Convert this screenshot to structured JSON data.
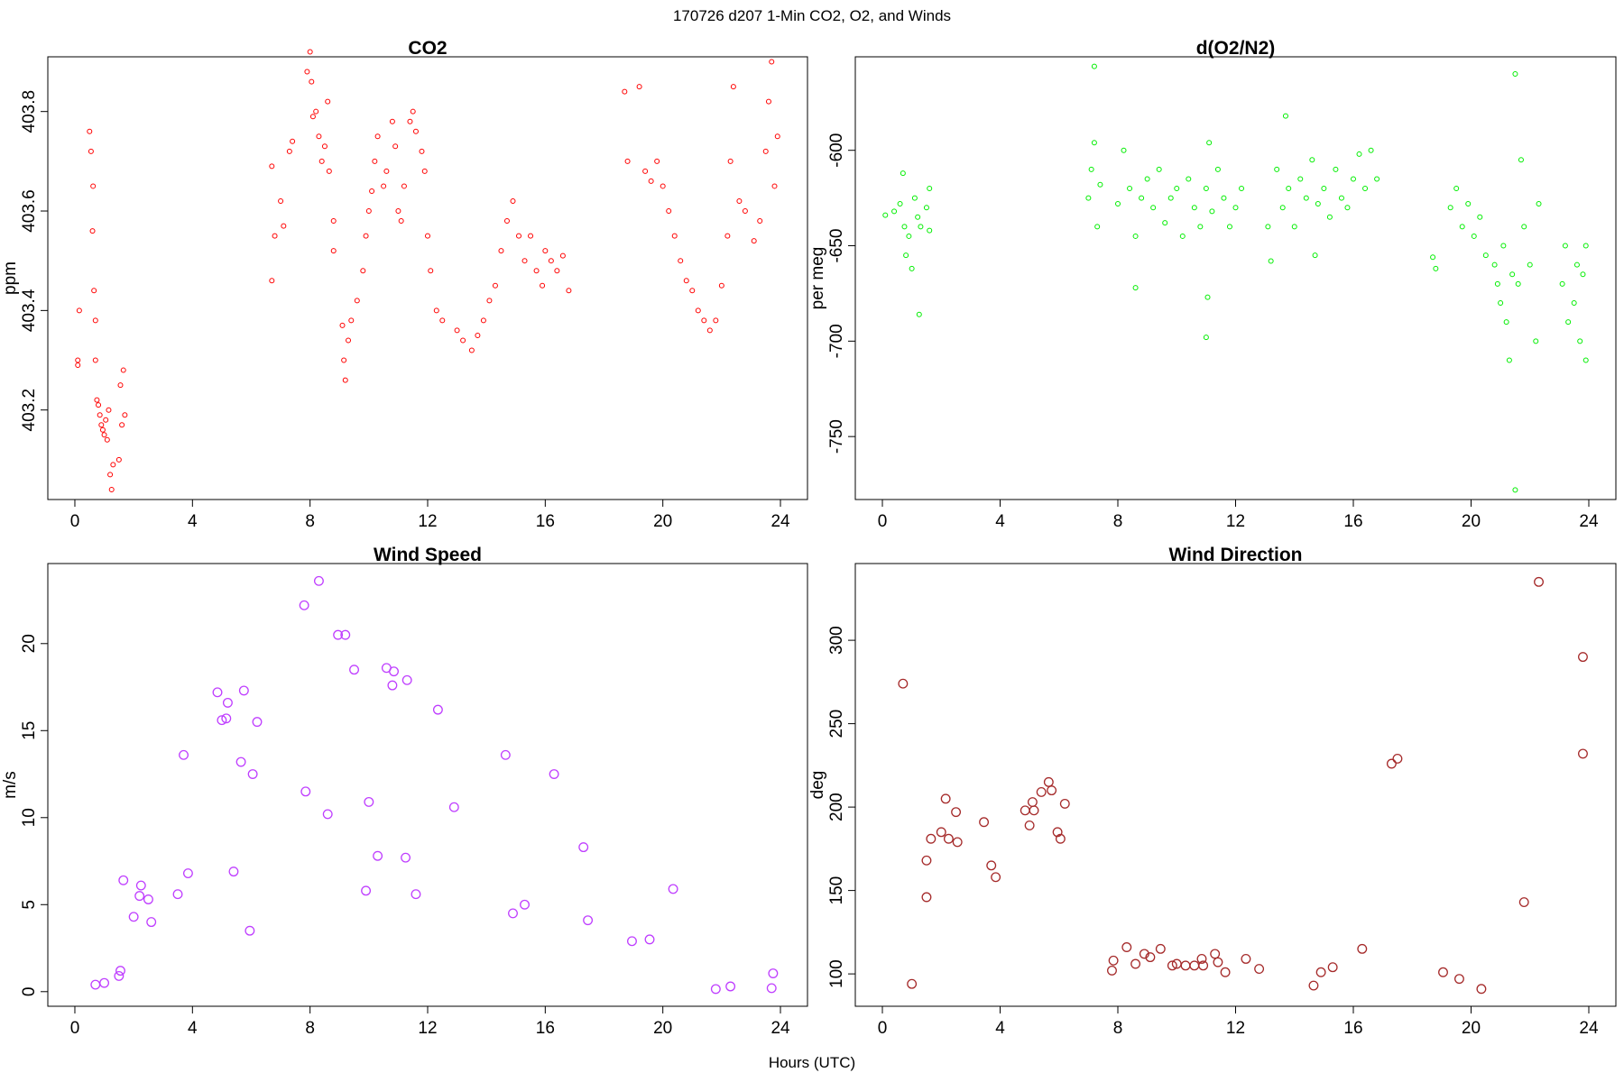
{
  "title": "170726   d207   1-Min CO2, O2, and Winds",
  "x_label": "Hours (UTC)",
  "chart_data": [
    {
      "type": "scatter",
      "title": "CO2",
      "y_label": "ppm",
      "color": "#ff0000",
      "xlim": [
        -0.92,
        24.92
      ],
      "xticks": [
        0,
        4,
        8,
        12,
        16,
        20,
        24
      ],
      "ylim": [
        403.02,
        403.91
      ],
      "yticks": [
        403.2,
        403.4,
        403.6,
        403.8
      ],
      "x": [
        0.1,
        0.1,
        0.15,
        0.5,
        0.55,
        0.6,
        0.62,
        0.65,
        0.7,
        0.7,
        0.75,
        0.8,
        0.85,
        0.9,
        0.95,
        1.0,
        1.05,
        1.1,
        1.15,
        1.2,
        1.25,
        1.3,
        1.5,
        1.55,
        1.6,
        1.65,
        1.7,
        6.7,
        6.7,
        6.8,
        7.0,
        7.1,
        7.3,
        7.4,
        7.9,
        8.0,
        8.05,
        8.1,
        8.2,
        8.3,
        8.4,
        8.5,
        8.6,
        8.65,
        8.8,
        8.8,
        9.1,
        9.15,
        9.2,
        9.3,
        9.4,
        9.6,
        9.8,
        9.9,
        10.0,
        10.1,
        10.2,
        10.3,
        10.5,
        10.6,
        10.8,
        10.9,
        11.0,
        11.1,
        11.2,
        11.4,
        11.5,
        11.6,
        11.8,
        11.9,
        12.0,
        12.1,
        12.3,
        12.5,
        13.0,
        13.2,
        13.5,
        13.7,
        13.9,
        14.1,
        14.3,
        14.5,
        14.7,
        14.9,
        15.1,
        15.3,
        15.5,
        15.7,
        15.9,
        16.0,
        16.2,
        16.4,
        16.6,
        16.8,
        18.7,
        18.8,
        19.2,
        19.4,
        19.6,
        19.8,
        20.0,
        20.2,
        20.4,
        20.6,
        20.8,
        21.0,
        21.2,
        21.4,
        21.6,
        21.8,
        22.0,
        22.2,
        22.3,
        22.4,
        22.6,
        22.8,
        23.1,
        23.3,
        23.5,
        23.6,
        23.7,
        23.8,
        23.9
      ],
      "values": [
        403.3,
        403.29,
        403.4,
        403.76,
        403.72,
        403.56,
        403.65,
        403.44,
        403.3,
        403.38,
        403.22,
        403.21,
        403.19,
        403.17,
        403.16,
        403.15,
        403.18,
        403.14,
        403.2,
        403.07,
        403.04,
        403.09,
        403.1,
        403.25,
        403.17,
        403.28,
        403.19,
        403.69,
        403.46,
        403.55,
        403.62,
        403.57,
        403.72,
        403.74,
        403.88,
        403.92,
        403.86,
        403.79,
        403.8,
        403.75,
        403.7,
        403.73,
        403.82,
        403.68,
        403.58,
        403.52,
        403.37,
        403.3,
        403.26,
        403.34,
        403.38,
        403.42,
        403.48,
        403.55,
        403.6,
        403.64,
        403.7,
        403.75,
        403.65,
        403.68,
        403.78,
        403.73,
        403.6,
        403.58,
        403.65,
        403.78,
        403.8,
        403.76,
        403.72,
        403.68,
        403.55,
        403.48,
        403.4,
        403.38,
        403.36,
        403.34,
        403.32,
        403.35,
        403.38,
        403.42,
        403.45,
        403.52,
        403.58,
        403.62,
        403.55,
        403.5,
        403.55,
        403.48,
        403.45,
        403.52,
        403.5,
        403.48,
        403.51,
        403.44,
        403.84,
        403.7,
        403.85,
        403.68,
        403.66,
        403.7,
        403.65,
        403.6,
        403.55,
        403.5,
        403.46,
        403.44,
        403.4,
        403.38,
        403.36,
        403.38,
        403.45,
        403.55,
        403.7,
        403.85,
        403.62,
        403.6,
        403.54,
        403.58,
        403.72,
        403.82,
        403.9,
        403.65,
        403.75
      ]
    },
    {
      "type": "scatter",
      "title": "d(O2/N2)",
      "y_label": "per meg",
      "color": "#00ee00",
      "xlim": [
        -0.92,
        24.92
      ],
      "xticks": [
        0,
        4,
        8,
        12,
        16,
        20,
        24
      ],
      "ylim": [
        -783,
        -551
      ],
      "yticks": [
        -600,
        -650,
        -700,
        -750
      ],
      "x": [
        0.1,
        0.4,
        0.6,
        0.7,
        0.75,
        0.8,
        0.9,
        1.0,
        1.1,
        1.2,
        1.25,
        1.3,
        1.5,
        1.6,
        1.6,
        7.1,
        7.2,
        7.3,
        7.0,
        7.4,
        7.2,
        8.0,
        8.2,
        8.4,
        8.6,
        8.6,
        8.8,
        9.0,
        9.2,
        9.4,
        9.6,
        9.8,
        10.0,
        10.2,
        10.4,
        10.6,
        10.8,
        11.0,
        11.1,
        11.05,
        11.0,
        11.2,
        11.4,
        11.6,
        11.8,
        12.0,
        12.2,
        13.1,
        13.2,
        13.4,
        13.6,
        13.7,
        13.8,
        14.0,
        14.2,
        14.4,
        14.6,
        14.7,
        14.8,
        15.0,
        15.2,
        15.4,
        15.6,
        15.8,
        16.0,
        16.2,
        16.4,
        16.6,
        16.8,
        18.7,
        18.8,
        19.3,
        19.5,
        19.7,
        19.9,
        20.1,
        20.3,
        20.5,
        20.8,
        20.9,
        21.0,
        21.1,
        21.2,
        21.3,
        21.4,
        21.5,
        21.5,
        21.6,
        21.7,
        21.8,
        22.0,
        22.2,
        22.3,
        23.1,
        23.2,
        23.3,
        23.5,
        23.6,
        23.7,
        23.8,
        23.9,
        23.9
      ],
      "values": [
        -634,
        -632,
        -628,
        -612,
        -640,
        -655,
        -645,
        -662,
        -625,
        -635,
        -686,
        -640,
        -630,
        -642,
        -620,
        -610,
        -596,
        -640,
        -625,
        -618,
        -556,
        -628,
        -600,
        -620,
        -645,
        -672,
        -625,
        -615,
        -630,
        -610,
        -638,
        -625,
        -620,
        -645,
        -615,
        -630,
        -640,
        -620,
        -596,
        -677,
        -698,
        -632,
        -610,
        -625,
        -640,
        -630,
        -620,
        -640,
        -658,
        -610,
        -630,
        -582,
        -620,
        -640,
        -615,
        -625,
        -605,
        -655,
        -628,
        -620,
        -635,
        -610,
        -625,
        -630,
        -615,
        -602,
        -620,
        -600,
        -615,
        -656,
        -662,
        -630,
        -620,
        -640,
        -628,
        -645,
        -635,
        -655,
        -660,
        -670,
        -680,
        -650,
        -690,
        -710,
        -665,
        -560,
        -778,
        -670,
        -605,
        -640,
        -660,
        -700,
        -628,
        -670,
        -650,
        -690,
        -680,
        -660,
        -700,
        -665,
        -710,
        -650
      ]
    },
    {
      "type": "scatter",
      "title": "Wind Speed",
      "y_label": "m/s",
      "color": "#bf3eff",
      "xlim": [
        -0.92,
        24.92
      ],
      "xticks": [
        0,
        4,
        8,
        12,
        16,
        20,
        24
      ],
      "ylim": [
        -0.84,
        24.6
      ],
      "yticks": [
        0,
        5,
        10,
        15,
        20
      ],
      "x": [
        0.7,
        1.0,
        1.5,
        1.55,
        1.65,
        2.0,
        2.2,
        2.25,
        2.5,
        2.6,
        3.5,
        3.7,
        3.85,
        4.85,
        5.0,
        5.15,
        5.2,
        5.4,
        5.65,
        5.75,
        5.95,
        6.05,
        6.2,
        7.8,
        7.85,
        8.3,
        8.6,
        8.95,
        9.2,
        9.5,
        9.9,
        10.0,
        10.3,
        10.6,
        10.8,
        10.85,
        11.25,
        11.3,
        11.6,
        12.35,
        12.9,
        14.65,
        14.9,
        15.3,
        16.3,
        17.3,
        17.45,
        18.95,
        19.55,
        20.35,
        21.8,
        22.3,
        23.7,
        23.75
      ],
      "values": [
        0.4,
        0.5,
        0.9,
        1.2,
        6.4,
        4.3,
        5.5,
        6.1,
        5.3,
        4.0,
        5.6,
        13.6,
        6.8,
        17.2,
        15.6,
        15.7,
        16.6,
        6.9,
        13.2,
        17.3,
        3.5,
        12.5,
        15.5,
        22.2,
        11.5,
        23.6,
        10.2,
        20.5,
        20.5,
        18.5,
        5.8,
        10.9,
        7.8,
        18.6,
        17.6,
        18.4,
        7.7,
        17.9,
        5.6,
        16.2,
        10.6,
        13.6,
        4.5,
        5.0,
        12.5,
        8.3,
        4.1,
        2.9,
        3.0,
        5.9,
        0.15,
        0.3,
        0.2,
        1.05
      ]
    },
    {
      "type": "scatter",
      "title": "Wind Direction",
      "y_label": "deg",
      "color": "#a52a2a",
      "xlim": [
        -0.92,
        24.92
      ],
      "xticks": [
        0,
        4,
        8,
        12,
        16,
        20,
        24
      ],
      "ylim": [
        80.6,
        346
      ],
      "yticks": [
        100,
        150,
        200,
        250,
        300
      ],
      "x": [
        0.7,
        1.0,
        1.5,
        1.5,
        1.65,
        2.0,
        2.15,
        2.25,
        2.5,
        2.55,
        3.45,
        3.7,
        3.85,
        4.85,
        5.0,
        5.1,
        5.15,
        5.4,
        5.65,
        5.75,
        5.95,
        6.05,
        6.2,
        7.8,
        7.85,
        8.3,
        8.6,
        8.9,
        9.1,
        9.45,
        9.85,
        10.0,
        10.3,
        10.6,
        10.85,
        10.9,
        11.3,
        11.4,
        11.65,
        12.35,
        12.8,
        14.65,
        14.9,
        15.3,
        16.3,
        17.3,
        17.5,
        19.05,
        19.6,
        20.35,
        21.8,
        22.3,
        23.8,
        23.8
      ],
      "values": [
        274,
        94,
        168,
        146,
        181,
        185,
        205,
        181,
        197,
        179,
        191,
        165,
        158,
        198,
        189,
        203,
        198,
        209,
        215,
        210,
        185,
        181,
        202,
        102,
        108,
        116,
        106,
        112,
        110,
        115,
        105,
        106,
        105,
        105,
        109,
        105,
        112,
        107,
        101,
        109,
        103,
        93,
        101,
        104,
        115,
        226,
        229,
        101,
        97,
        91,
        143,
        335,
        290,
        232
      ]
    }
  ]
}
